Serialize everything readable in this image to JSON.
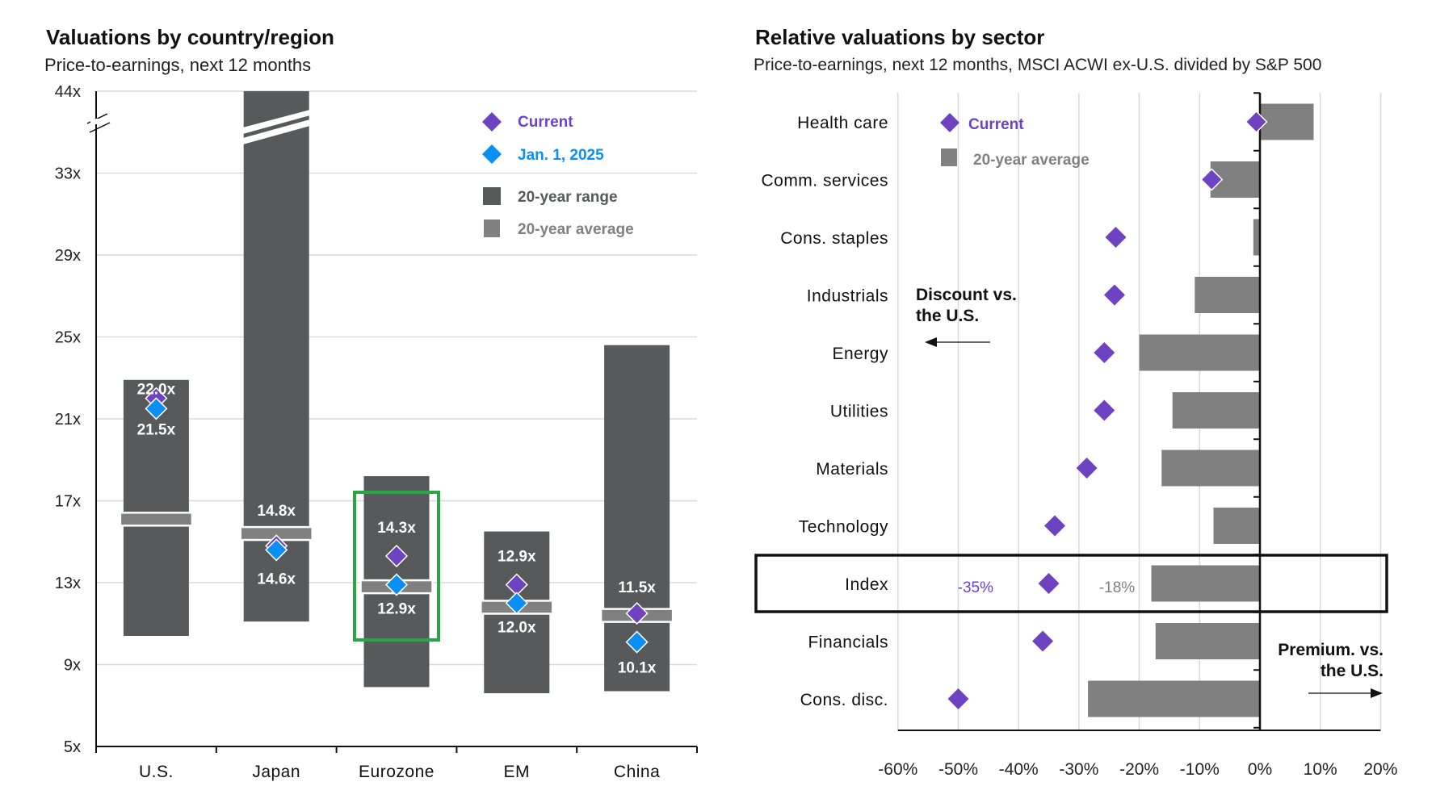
{
  "colors": {
    "range_bar": "#58595b",
    "average": "#808080",
    "current": "#6f42c1",
    "jan_2025": "#0a8ff5",
    "gridline": "#d9d9d9",
    "highlight_box": "#27a844",
    "axis": "#111111"
  },
  "chart_data": [
    {
      "type": "range-bar",
      "title": "Valuations by country/region",
      "subtitle": "Price-to-earnings, next 12 months",
      "xlabel": "",
      "ylabel": "",
      "y_ticks": [
        "5x",
        "9x",
        "13x",
        "17x",
        "21x",
        "25x",
        "29x",
        "33x",
        "44x"
      ],
      "y_tick_values": [
        5,
        9,
        13,
        17,
        21,
        25,
        29,
        33,
        44
      ],
      "y_axis_break": "between 33x and 44x",
      "ylim": [
        5,
        44
      ],
      "grid": true,
      "legend_position": "top-right",
      "legend": [
        {
          "label": "Current",
          "marker": "diamond",
          "color_key": "current"
        },
        {
          "label": "Jan. 1, 2025",
          "marker": "diamond",
          "color_key": "jan_2025"
        },
        {
          "label": "20-year range",
          "marker": "square",
          "color_key": "range_bar"
        },
        {
          "label": "20-year average",
          "marker": "square",
          "color_key": "average"
        }
      ],
      "categories": [
        "U.S.",
        "Japan",
        "Eurozone",
        "EM",
        "China"
      ],
      "range_low": [
        10.4,
        11.1,
        7.9,
        7.6,
        7.7
      ],
      "range_high": [
        22.9,
        44,
        18.2,
        15.5,
        24.6
      ],
      "range_high_broken": [
        false,
        true,
        false,
        false,
        false
      ],
      "average": [
        16.1,
        15.4,
        12.8,
        11.8,
        11.4
      ],
      "current": [
        22.0,
        14.8,
        14.3,
        12.9,
        11.5
      ],
      "jan_2025": [
        21.5,
        14.6,
        12.9,
        12.0,
        10.1
      ],
      "current_labels": [
        "22.0x",
        "14.8x",
        "14.3x",
        "12.9x",
        "11.5x"
      ],
      "jan_2025_labels": [
        "21.5x",
        "14.6x",
        "12.9x",
        "12.0x",
        "10.1x"
      ],
      "highlighted_category": "Eurozone"
    },
    {
      "type": "bar",
      "orientation": "horizontal",
      "title": "Relative valuations by sector",
      "subtitle": "Price-to-earnings, next 12 months, MSCI ACWI ex-U.S. divided by S&P 500",
      "xlabel": "",
      "ylabel": "",
      "xlim": [
        -60,
        20
      ],
      "x_ticks": [
        "-60%",
        "-50%",
        "-40%",
        "-30%",
        "-20%",
        "-10%",
        "0%",
        "10%",
        "20%"
      ],
      "x_tick_values": [
        -60,
        -50,
        -40,
        -30,
        -20,
        -10,
        0,
        10,
        20
      ],
      "grid": true,
      "legend_position": "top-left",
      "legend": [
        {
          "label": "Current",
          "marker": "diamond",
          "color_key": "current"
        },
        {
          "label": "20-year average",
          "marker": "square",
          "color_key": "average"
        }
      ],
      "categories": [
        "Health care",
        "Comm. services",
        "Cons. staples",
        "Industrials",
        "Energy",
        "Utilities",
        "Materials",
        "Technology",
        "Index",
        "Financials",
        "Cons. disc."
      ],
      "series": [
        {
          "name": "20-year average",
          "values": [
            8.9,
            -8.2,
            -1.1,
            -10.8,
            -20.0,
            -14.5,
            -16.3,
            -7.7,
            -18.0,
            -17.3,
            -28.5
          ]
        },
        {
          "name": "Current",
          "values": [
            -0.6,
            -8.0,
            -23.9,
            -24.1,
            -25.8,
            -25.8,
            -28.7,
            -34.0,
            -35.0,
            -36.0,
            -50.0
          ]
        }
      ],
      "highlighted_category": "Index",
      "annotations": {
        "index_current": "-35%",
        "index_average": "-18%",
        "discount_line1": "Discount vs.",
        "discount_line2": "the U.S.",
        "premium_line1": "Premium. vs.",
        "premium_line2": "the U.S."
      }
    }
  ]
}
